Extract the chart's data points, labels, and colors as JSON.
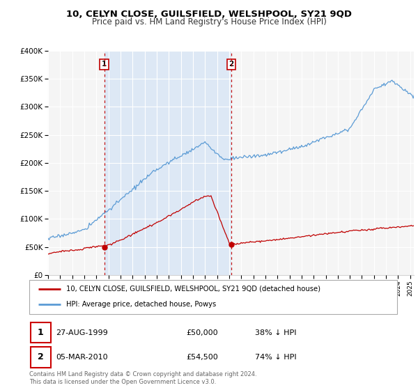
{
  "title_line1": "10, CELYN CLOSE, GUILSFIELD, WELSHPOOL, SY21 9QD",
  "title_line2": "Price paid vs. HM Land Registry's House Price Index (HPI)",
  "legend_line1": "10, CELYN CLOSE, GUILSFIELD, WELSHPOOL, SY21 9QD (detached house)",
  "legend_line2": "HPI: Average price, detached house, Powys",
  "sale1_date_str": "27-AUG-1999",
  "sale1_price_str": "£50,000",
  "sale1_hpi_str": "38% ↓ HPI",
  "sale1_year": 1999.65,
  "sale1_value": 50000,
  "sale2_date_str": "05-MAR-2010",
  "sale2_price_str": "£54,500",
  "sale2_hpi_str": "74% ↓ HPI",
  "sale2_year": 2010.17,
  "sale2_value": 54500,
  "footer": "Contains HM Land Registry data © Crown copyright and database right 2024.\nThis data is licensed under the Open Government Licence v3.0.",
  "hpi_color": "#5b9bd5",
  "price_color": "#c00000",
  "vline_color": "#c00000",
  "shade_color": "#dde8f5",
  "ylim_max": 400000,
  "xlim_start": 1995.0,
  "xlim_end": 2025.3,
  "bg_color": "#f5f5f5"
}
